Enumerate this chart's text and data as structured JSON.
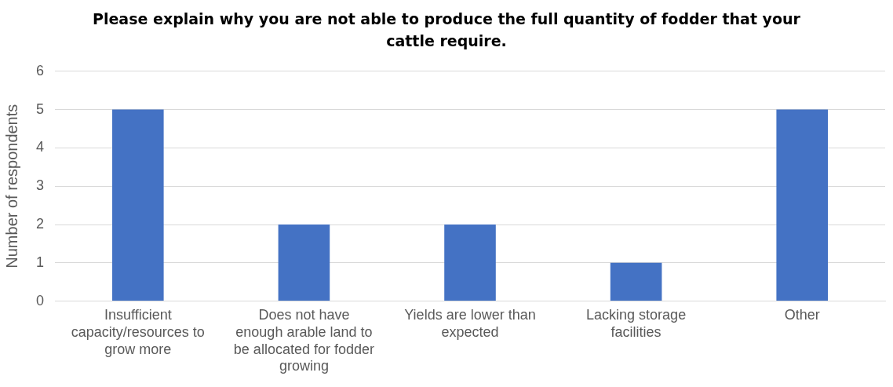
{
  "chart_data": {
    "type": "bar",
    "title": "Please explain why you are not able to produce the full quantity of fodder that your cattle require.",
    "ylabel": "Number of respondents",
    "categories": [
      "Insufficient capacity/resources to grow more",
      "Does not have enough arable land to be allocated for fodder growing",
      "Yields are lower than expected",
      "Lacking storage facilities",
      "Other"
    ],
    "values": [
      5,
      2,
      2,
      1,
      5
    ],
    "color": "#4472c4",
    "ylim": [
      0,
      6
    ],
    "yticks": [
      0,
      1,
      2,
      3,
      4,
      5,
      6
    ],
    "grid": "y",
    "legend": false
  }
}
